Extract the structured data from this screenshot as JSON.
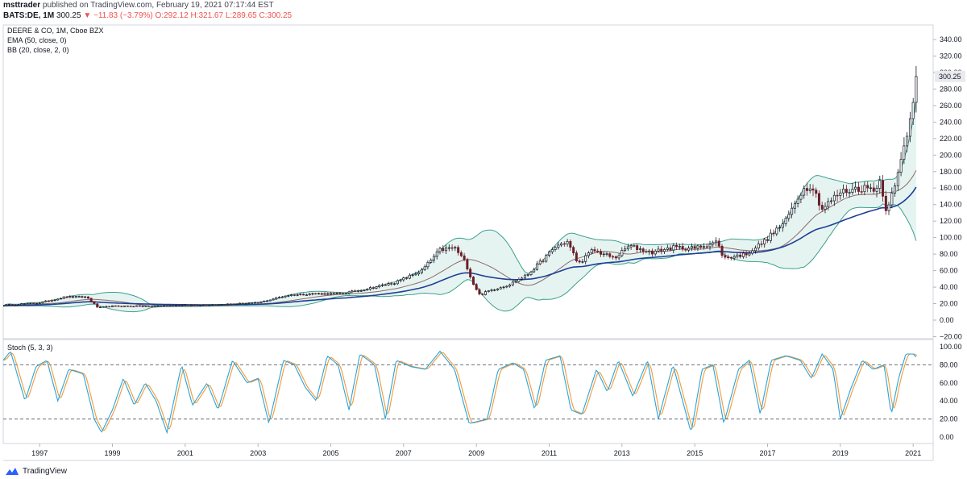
{
  "header": {
    "publisher": "msttrader",
    "published_text": "published on TradingView.com, February 19, 2021 07:17:44 EST",
    "symbol": "BATS:DE, 1M",
    "last_price": "300.25",
    "change": "▼ −11.83 (−3.79%)",
    "ohlc": "O:292.12 H:321.67 L:289.65 C:300.25"
  },
  "legend": {
    "main_title": "DEERE & CO, 1M, Cboe BZX",
    "ema": "EMA (50, close, 0)",
    "bb": "BB (20, close, 2, 0)",
    "stoch": "Stoch (5, 3, 3)"
  },
  "footer": {
    "brand": "TradingView"
  },
  "colors": {
    "ema": "#1e3f96",
    "bb_mid": "#8c6b6b",
    "bb_band": "#3aa08d",
    "bb_fill": "#e6f4f1",
    "stoch_k": "#2aa4d8",
    "stoch_d": "#f29a3a",
    "candle_up": "#131722",
    "candle_down": "#6b1f2a",
    "price_label_bg": "#e9eaee"
  },
  "chart_data": [
    {
      "type": "candlestick",
      "title": "DEERE & CO, 1M, Cboe BZX",
      "x_tick_labels": [
        "1997",
        "1999",
        "2001",
        "2003",
        "2005",
        "2007",
        "2009",
        "2011",
        "2013",
        "2015",
        "2017",
        "2019",
        "2021"
      ],
      "y_tick_labels": [
        "−20.00",
        "0.00",
        "20.00",
        "40.00",
        "60.00",
        "80.00",
        "100.00",
        "120.00",
        "140.00",
        "160.00",
        "180.00",
        "200.00",
        "220.00",
        "240.00",
        "260.00",
        "280.00",
        "300.00",
        "320.00",
        "340.00"
      ],
      "last_price_label": "300.25",
      "ylim": [
        -20,
        350
      ],
      "xlim": [
        1996.0,
        2021.55
      ],
      "close_keypoints": [
        [
          1996.0,
          18
        ],
        [
          1997.0,
          21
        ],
        [
          1997.7,
          28
        ],
        [
          1998.3,
          28
        ],
        [
          1998.6,
          15
        ],
        [
          1999.0,
          17
        ],
        [
          2000.0,
          17
        ],
        [
          2001.0,
          18
        ],
        [
          2002.0,
          19
        ],
        [
          2003.0,
          21
        ],
        [
          2003.8,
          30
        ],
        [
          2004.5,
          32
        ],
        [
          2005.3,
          32
        ],
        [
          2006.0,
          38
        ],
        [
          2006.8,
          46
        ],
        [
          2007.5,
          60
        ],
        [
          2008.0,
          85
        ],
        [
          2008.4,
          88
        ],
        [
          2008.7,
          70
        ],
        [
          2008.9,
          45
        ],
        [
          2009.1,
          30
        ],
        [
          2009.3,
          35
        ],
        [
          2009.9,
          43
        ],
        [
          2010.4,
          55
        ],
        [
          2010.8,
          72
        ],
        [
          2011.2,
          90
        ],
        [
          2011.5,
          95
        ],
        [
          2011.8,
          68
        ],
        [
          2012.2,
          85
        ],
        [
          2012.8,
          75
        ],
        [
          2013.2,
          90
        ],
        [
          2013.8,
          82
        ],
        [
          2014.4,
          88
        ],
        [
          2015.0,
          87
        ],
        [
          2015.6,
          95
        ],
        [
          2015.8,
          75
        ],
        [
          2016.4,
          80
        ],
        [
          2016.9,
          95
        ],
        [
          2017.5,
          120
        ],
        [
          2017.9,
          155
        ],
        [
          2018.2,
          165
        ],
        [
          2018.5,
          135
        ],
        [
          2019.0,
          155
        ],
        [
          2019.5,
          160
        ],
        [
          2020.0,
          160
        ],
        [
          2020.1,
          170
        ],
        [
          2020.25,
          135
        ],
        [
          2020.5,
          160
        ],
        [
          2020.7,
          200
        ],
        [
          2020.9,
          240
        ],
        [
          2021.0,
          270
        ],
        [
          2021.1,
          300.25
        ]
      ],
      "ema_period": 50,
      "bb": {
        "period": 20,
        "mult": 2
      }
    },
    {
      "type": "line",
      "title": "Stoch (5, 3, 3)",
      "y_tick_labels": [
        "0.00",
        "20.00",
        "40.00",
        "60.00",
        "80.00",
        "100.00"
      ],
      "ylim": [
        -5,
        102
      ],
      "reference_levels": [
        20,
        80
      ],
      "k_keypoints": [
        [
          1996.0,
          85
        ],
        [
          1996.2,
          95
        ],
        [
          1996.6,
          40
        ],
        [
          1996.9,
          78
        ],
        [
          1997.2,
          85
        ],
        [
          1997.5,
          40
        ],
        [
          1997.8,
          75
        ],
        [
          1998.2,
          70
        ],
        [
          1998.5,
          20
        ],
        [
          1998.7,
          5
        ],
        [
          1999.0,
          30
        ],
        [
          1999.3,
          65
        ],
        [
          1999.6,
          35
        ],
        [
          1999.9,
          60
        ],
        [
          2000.2,
          40
        ],
        [
          2000.5,
          5
        ],
        [
          2000.9,
          80
        ],
        [
          2001.2,
          35
        ],
        [
          2001.6,
          60
        ],
        [
          2001.9,
          30
        ],
        [
          2002.3,
          85
        ],
        [
          2002.7,
          60
        ],
        [
          2003.0,
          65
        ],
        [
          2003.3,
          15
        ],
        [
          2003.7,
          85
        ],
        [
          2004.0,
          80
        ],
        [
          2004.3,
          55
        ],
        [
          2004.6,
          40
        ],
        [
          2004.9,
          90
        ],
        [
          2005.2,
          80
        ],
        [
          2005.5,
          30
        ],
        [
          2005.8,
          92
        ],
        [
          2006.2,
          80
        ],
        [
          2006.5,
          20
        ],
        [
          2006.8,
          85
        ],
        [
          2007.2,
          78
        ],
        [
          2007.6,
          75
        ],
        [
          2008.0,
          95
        ],
        [
          2008.4,
          75
        ],
        [
          2008.8,
          15
        ],
        [
          2009.3,
          20
        ],
        [
          2009.6,
          75
        ],
        [
          2010.0,
          82
        ],
        [
          2010.3,
          75
        ],
        [
          2010.6,
          30
        ],
        [
          2010.9,
          85
        ],
        [
          2011.3,
          90
        ],
        [
          2011.6,
          30
        ],
        [
          2011.9,
          25
        ],
        [
          2012.3,
          75
        ],
        [
          2012.6,
          50
        ],
        [
          2012.9,
          85
        ],
        [
          2013.3,
          45
        ],
        [
          2013.7,
          85
        ],
        [
          2014.0,
          20
        ],
        [
          2014.4,
          80
        ],
        [
          2014.7,
          35
        ],
        [
          2014.9,
          5
        ],
        [
          2015.2,
          75
        ],
        [
          2015.5,
          80
        ],
        [
          2015.8,
          15
        ],
        [
          2016.2,
          75
        ],
        [
          2016.5,
          85
        ],
        [
          2016.8,
          25
        ],
        [
          2017.1,
          85
        ],
        [
          2017.5,
          90
        ],
        [
          2017.9,
          85
        ],
        [
          2018.2,
          65
        ],
        [
          2018.5,
          92
        ],
        [
          2018.8,
          75
        ],
        [
          2019.0,
          20
        ],
        [
          2019.3,
          55
        ],
        [
          2019.6,
          85
        ],
        [
          2019.9,
          75
        ],
        [
          2020.2,
          80
        ],
        [
          2020.4,
          25
        ],
        [
          2020.6,
          65
        ],
        [
          2020.8,
          92
        ],
        [
          2021.0,
          92
        ],
        [
          2021.1,
          88
        ]
      ]
    }
  ]
}
